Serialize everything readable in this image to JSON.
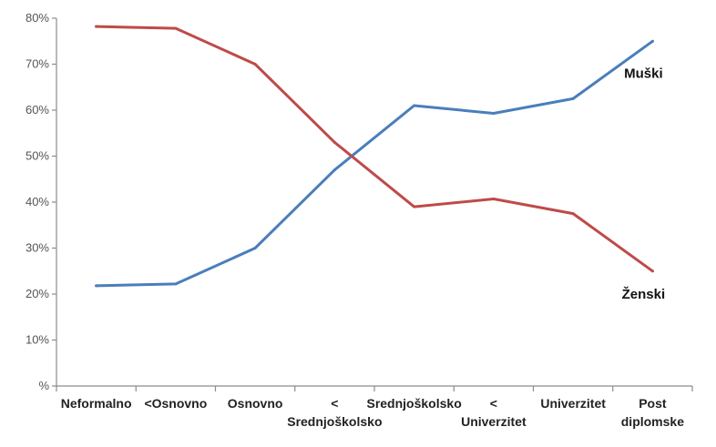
{
  "chart_data": {
    "type": "line",
    "categories": [
      [
        "Neformalno"
      ],
      [
        "<Osnovno"
      ],
      [
        "Osnovno"
      ],
      [
        "<",
        "Srednjoškolsko"
      ],
      [
        "Srednjoškolsko"
      ],
      [
        "<",
        "Univerzitet"
      ],
      [
        "Univerzitet"
      ],
      [
        "Post",
        "diplomske"
      ]
    ],
    "series": [
      {
        "name": "Muški",
        "color": "#4a7ebb",
        "values": [
          21.8,
          22.2,
          30,
          47,
          61,
          59.3,
          62.5,
          75
        ]
      },
      {
        "name": "Ženski",
        "color": "#be4b48",
        "values": [
          78.2,
          77.8,
          70,
          53,
          39,
          40.7,
          37.5,
          25
        ]
      }
    ],
    "ylim": [
      0,
      80
    ],
    "yticks": [
      "%",
      "10%",
      "20%",
      "30%",
      "40%",
      "50%",
      "60%",
      "70%",
      "80%"
    ],
    "grid": false,
    "legend": "inline labels at right"
  }
}
